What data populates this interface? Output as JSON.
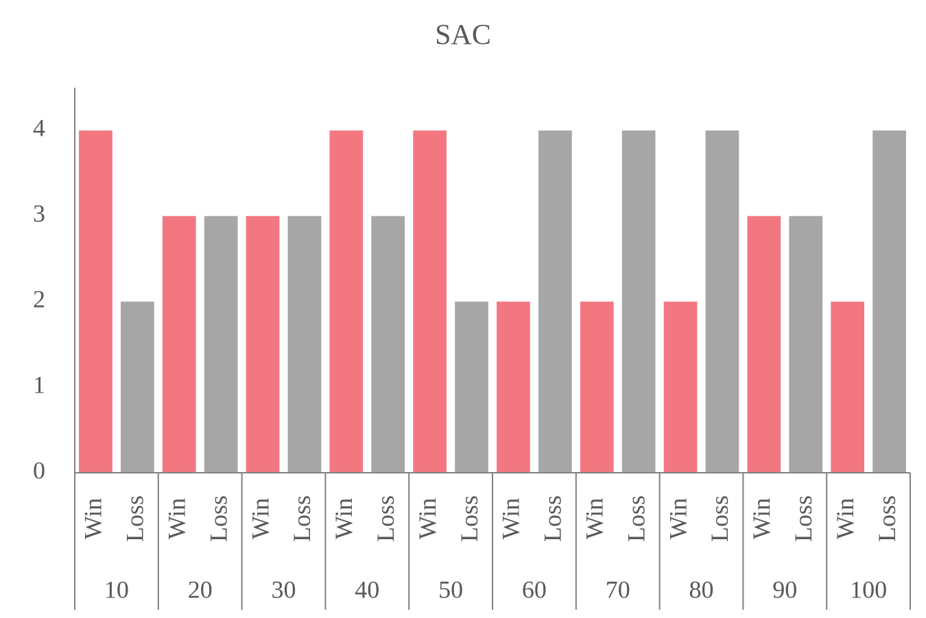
{
  "chart_data": {
    "type": "bar",
    "title": "SAC",
    "groups": [
      {
        "name": "10",
        "categories": [
          "Win",
          "Loss"
        ],
        "values": [
          4,
          2
        ]
      },
      {
        "name": "20",
        "categories": [
          "Win",
          "Loss"
        ],
        "values": [
          3,
          3
        ]
      },
      {
        "name": "30",
        "categories": [
          "Win",
          "Loss"
        ],
        "values": [
          3,
          3
        ]
      },
      {
        "name": "40",
        "categories": [
          "Win",
          "Loss"
        ],
        "values": [
          4,
          3
        ]
      },
      {
        "name": "50",
        "categories": [
          "Win",
          "Loss"
        ],
        "values": [
          4,
          2
        ]
      },
      {
        "name": "60",
        "categories": [
          "Win",
          "Loss"
        ],
        "values": [
          2,
          4
        ]
      },
      {
        "name": "70",
        "categories": [
          "Win",
          "Loss"
        ],
        "values": [
          2,
          4
        ]
      },
      {
        "name": "80",
        "categories": [
          "Win",
          "Loss"
        ],
        "values": [
          2,
          4
        ]
      },
      {
        "name": "90",
        "categories": [
          "Win",
          "Loss"
        ],
        "values": [
          3,
          3
        ]
      },
      {
        "name": "100",
        "categories": [
          "Win",
          "Loss"
        ],
        "values": [
          2,
          4
        ]
      }
    ],
    "colors": [
      "#f27781",
      "#a6a6a6"
    ],
    "ylim": [
      0,
      4.5
    ],
    "yticks": [
      0,
      1,
      2,
      3,
      4
    ],
    "grid": false
  }
}
